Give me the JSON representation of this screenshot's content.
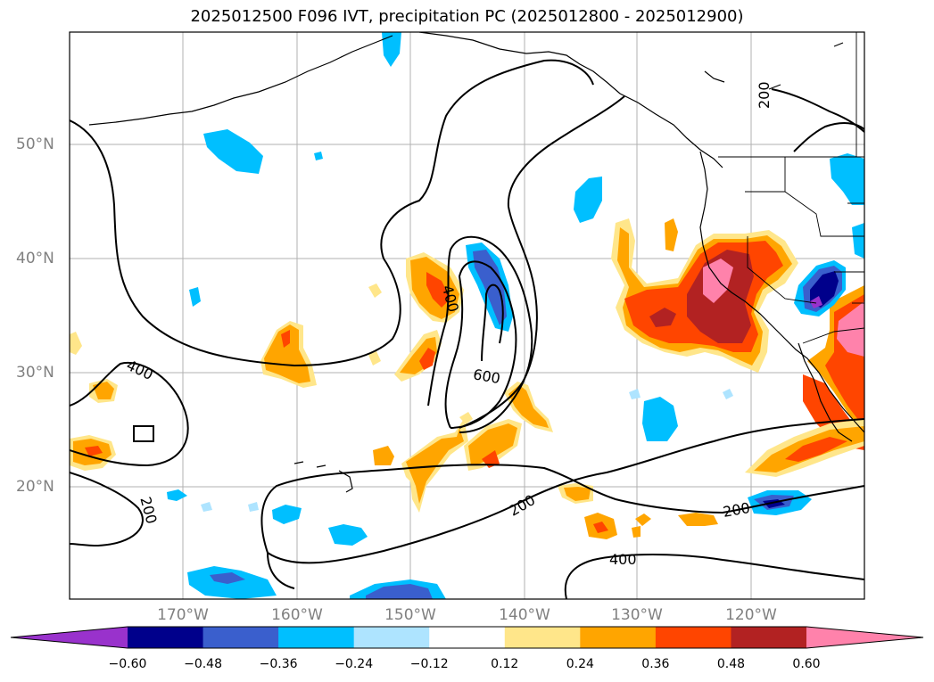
{
  "title": "2025012500 F096 IVT, precipitation PC (2025012800 - 2025012900)",
  "lat_labels": [
    "50°N",
    "40°N",
    "30°N",
    "20°N"
  ],
  "lon_labels": [
    "170°W",
    "160°W",
    "150°W",
    "140°W",
    "130°W",
    "120°W"
  ],
  "contour_labels": [
    "400",
    "400",
    "600",
    "200",
    "200",
    "200",
    "200",
    "400"
  ],
  "colorbar": {
    "ticks": [
      "−0.60",
      "−0.48",
      "−0.36",
      "−0.24",
      "−0.12",
      "0.12",
      "0.24",
      "0.36",
      "0.48",
      "0.60"
    ],
    "colors": [
      "#9932cc",
      "#00008b",
      "#3a5fcd",
      "#00bfff",
      "#aee4ff",
      "#ffffff",
      "#ffe68a",
      "#ffa500",
      "#ff4500",
      "#b22222",
      "#ff82ab"
    ]
  }
}
